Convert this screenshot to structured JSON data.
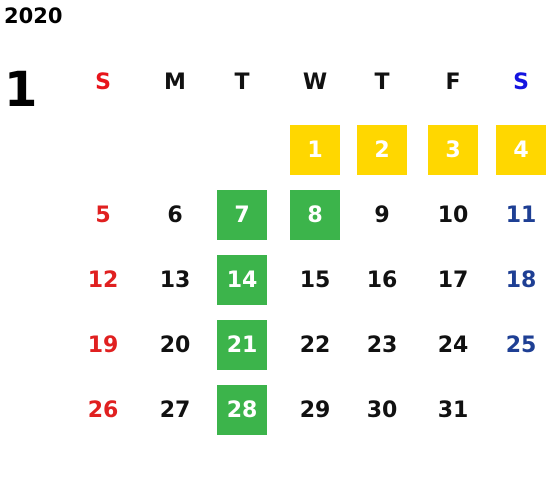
{
  "year": "2020",
  "month": "1",
  "weekdays": [
    "S",
    "M",
    "T",
    "W",
    "T",
    "F",
    "S"
  ],
  "weekday_colors": [
    "#e8141b",
    "#111111",
    "#111111",
    "#111111",
    "#111111",
    "#111111",
    "#1414e0"
  ],
  "day_colors": [
    "#e02020",
    "#111111",
    "#111111",
    "#111111",
    "#111111",
    "#111111",
    "#1e3f94"
  ],
  "weeks": [
    [
      null,
      null,
      null,
      {
        "value": 1,
        "fill": "#ffd700"
      },
      {
        "value": 2,
        "fill": "#ffd700"
      },
      {
        "value": 3,
        "fill": "#ffd700"
      },
      {
        "value": 4,
        "fill": "#ffd700"
      }
    ],
    [
      5,
      6,
      {
        "value": 7,
        "fill": "#3cb44b"
      },
      {
        "value": 8,
        "fill": "#3cb44b"
      },
      9,
      10,
      11
    ],
    [
      12,
      13,
      {
        "value": 14,
        "fill": "#3cb44b"
      },
      15,
      16,
      17,
      18
    ],
    [
      19,
      20,
      {
        "value": 21,
        "fill": "#3cb44b"
      },
      22,
      23,
      24,
      25
    ],
    [
      26,
      27,
      {
        "value": 28,
        "fill": "#3cb44b"
      },
      29,
      30,
      31,
      null
    ]
  ]
}
